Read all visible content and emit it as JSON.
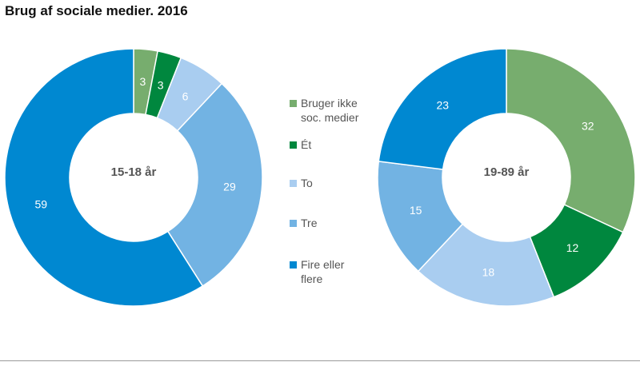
{
  "title": "Brug af sociale medier. 2016",
  "chart_data": {
    "type": "pie",
    "title": "Brug af sociale medier. 2016",
    "categories": [
      "Bruger ikke soc. medier",
      "Ét",
      "To",
      "Tre",
      "Fire eller flere"
    ],
    "legend_labels": [
      [
        "Bruger ikke",
        "soc. medier"
      ],
      [
        "Ét"
      ],
      [
        "To"
      ],
      [
        "Tre"
      ],
      [
        "Fire eller",
        "flere"
      ]
    ],
    "colors": [
      "#77ad6e",
      "#00873e",
      "#a9cdf0",
      "#72b3e3",
      "#0088d1"
    ],
    "legend_placement": "center",
    "series": [
      {
        "name": "15-18 år",
        "values": [
          3,
          3,
          6,
          29,
          59
        ]
      },
      {
        "name": "19-89 år",
        "values": [
          32,
          12,
          18,
          15,
          23
        ]
      }
    ]
  }
}
